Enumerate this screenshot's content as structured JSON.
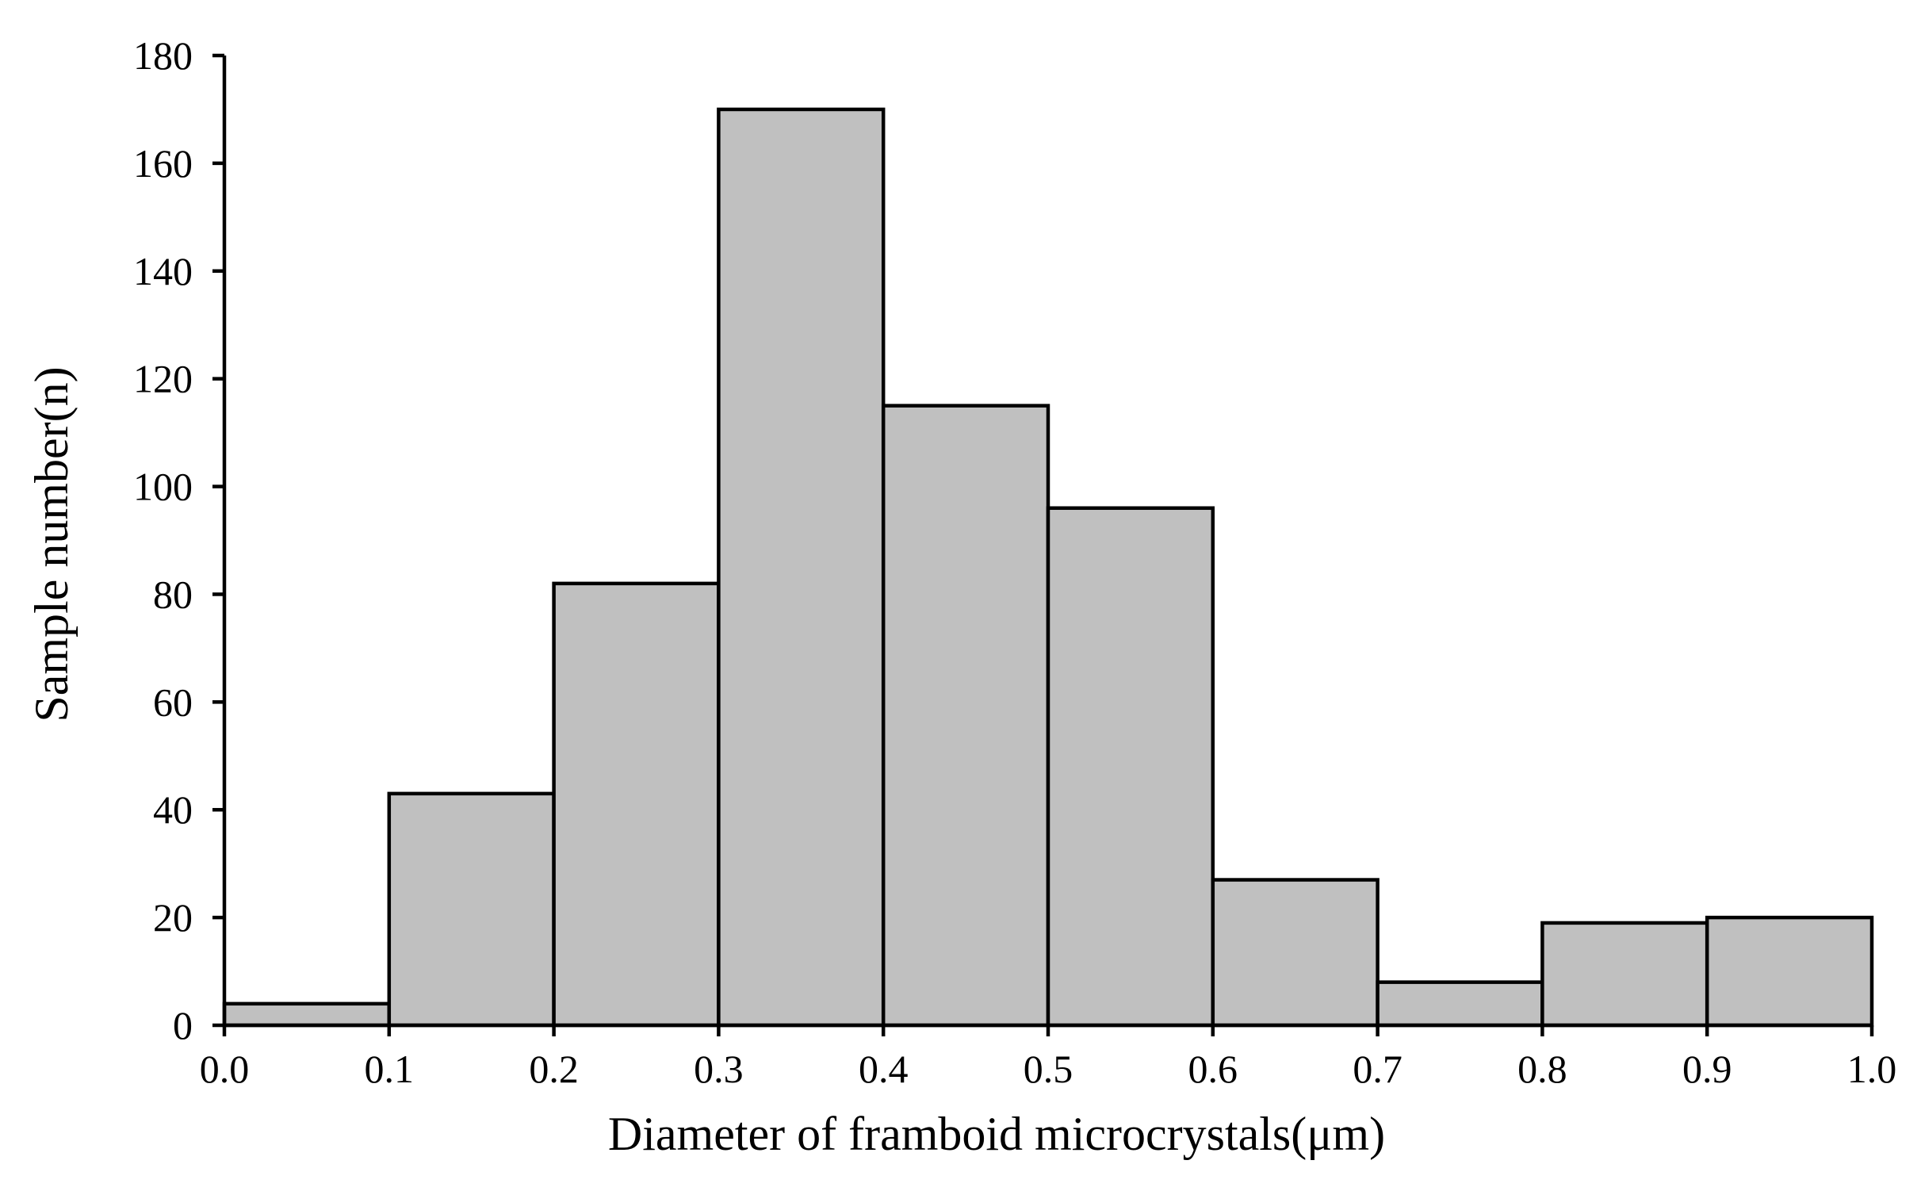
{
  "chart_data": {
    "type": "bar",
    "title": "",
    "xlabel": "Diameter of framboid microcrystals(μm)",
    "ylabel": "Sample number(n)",
    "bins": [
      {
        "from": 0.0,
        "to": 0.1,
        "value": 4
      },
      {
        "from": 0.1,
        "to": 0.2,
        "value": 43
      },
      {
        "from": 0.2,
        "to": 0.3,
        "value": 82
      },
      {
        "from": 0.3,
        "to": 0.4,
        "value": 170
      },
      {
        "from": 0.4,
        "to": 0.5,
        "value": 115
      },
      {
        "from": 0.5,
        "to": 0.6,
        "value": 96
      },
      {
        "from": 0.6,
        "to": 0.7,
        "value": 27
      },
      {
        "from": 0.7,
        "to": 0.8,
        "value": 8
      },
      {
        "from": 0.8,
        "to": 0.9,
        "value": 19
      },
      {
        "from": 0.9,
        "to": 1.0,
        "value": 20
      }
    ],
    "xlim": [
      0.0,
      1.0
    ],
    "ylim": [
      0,
      180
    ],
    "x_ticks": [
      "0.0",
      "0.1",
      "0.2",
      "0.3",
      "0.4",
      "0.5",
      "0.6",
      "0.7",
      "0.8",
      "0.9",
      "1.0"
    ],
    "y_ticks": [
      "0",
      "20",
      "40",
      "60",
      "80",
      "100",
      "120",
      "140",
      "160",
      "180"
    ],
    "grid": false,
    "legend": "none",
    "colors": {
      "bar_fill": "#c0c0c0",
      "bar_stroke": "#000000",
      "axis": "#000000"
    }
  }
}
